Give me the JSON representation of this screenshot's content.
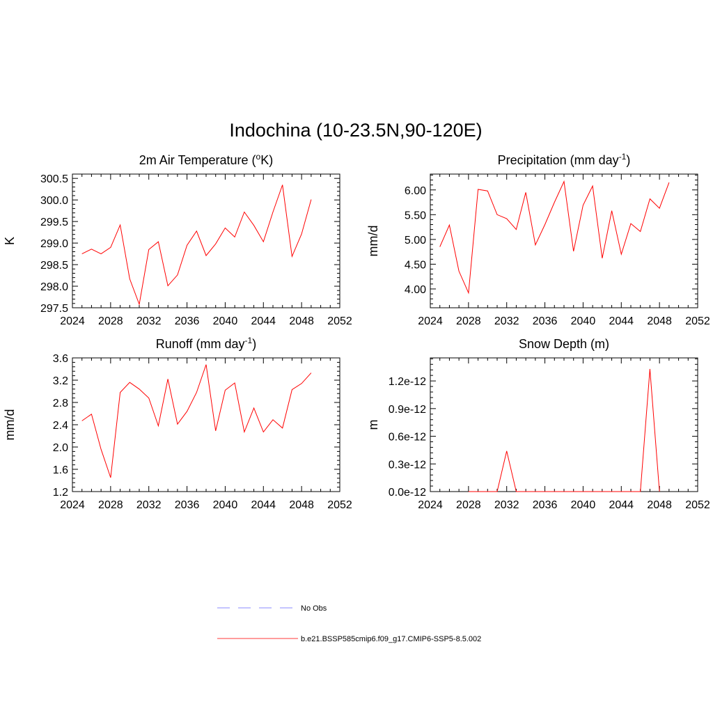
{
  "page_title": "Indochina (10-23.5N,90-120E)",
  "legend": [
    {
      "label": "No Obs",
      "color": "#a0a0ff",
      "style": "dashed"
    },
    {
      "label": "b.e21.BSSP585cmip6.f09_g17.CMIP6-SSP5-8.5.002",
      "color": "#ff6060",
      "style": "solid"
    }
  ],
  "chart_data": [
    {
      "type": "line",
      "title": "2m Air Temperature (",
      "title_sup": "o",
      "title_after": "K)",
      "ylabel": "K",
      "xlim": [
        2024,
        2052
      ],
      "xticks": [
        "2024",
        "2028",
        "2032",
        "2036",
        "2040",
        "2044",
        "2048",
        "2052"
      ],
      "ylim": [
        297.5,
        300.6
      ],
      "yticks": [
        "297.5",
        "298.0",
        "298.5",
        "299.0",
        "299.5",
        "300.0",
        "300.5"
      ],
      "ytick_values": [
        297.5,
        298.0,
        298.5,
        299.0,
        299.5,
        300.0,
        300.5
      ],
      "series_color": "#ff0000",
      "x": [
        2025,
        2026,
        2027,
        2028,
        2029,
        2030,
        2031,
        2032,
        2033,
        2034,
        2035,
        2036,
        2037,
        2038,
        2039,
        2040,
        2041,
        2042,
        2043,
        2044,
        2045,
        2046,
        2047,
        2048,
        2049
      ],
      "values": [
        298.75,
        298.86,
        298.75,
        298.9,
        299.42,
        298.17,
        297.58,
        298.85,
        299.03,
        298.01,
        298.26,
        298.95,
        299.28,
        298.71,
        298.98,
        299.35,
        299.14,
        299.72,
        299.41,
        299.03,
        299.72,
        300.35,
        298.69,
        299.21,
        300.01
      ]
    },
    {
      "type": "line",
      "title": "Precipitation (mm day",
      "title_sup": "-1",
      "title_after": ")",
      "ylabel": "mm/d",
      "xlim": [
        2024,
        2052
      ],
      "xticks": [
        "2024",
        "2028",
        "2032",
        "2036",
        "2040",
        "2044",
        "2048",
        "2052"
      ],
      "ylim": [
        3.62,
        6.32
      ],
      "yticks": [
        "4.00",
        "4.50",
        "5.00",
        "5.50",
        "6.00"
      ],
      "ytick_values": [
        4.0,
        4.5,
        5.0,
        5.5,
        6.0
      ],
      "series_color": "#ff0000",
      "x": [
        2025,
        2026,
        2027,
        2028,
        2029,
        2030,
        2031,
        2032,
        2033,
        2034,
        2035,
        2036,
        2037,
        2038,
        2039,
        2040,
        2041,
        2042,
        2043,
        2044,
        2045,
        2046,
        2047,
        2048,
        2049
      ],
      "values": [
        4.85,
        5.29,
        4.36,
        3.92,
        6.01,
        5.98,
        5.5,
        5.42,
        5.2,
        5.95,
        4.89,
        5.3,
        5.75,
        6.17,
        4.76,
        5.69,
        6.08,
        4.62,
        5.58,
        4.7,
        5.32,
        5.16,
        5.82,
        5.63,
        6.15
      ]
    },
    {
      "type": "line",
      "title": "Runoff (mm day",
      "title_sup": "-1",
      "title_after": ")",
      "ylabel": "mm/d",
      "xlim": [
        2024,
        2052
      ],
      "xticks": [
        "2024",
        "2028",
        "2032",
        "2036",
        "2040",
        "2044",
        "2048",
        "2052"
      ],
      "ylim": [
        1.2,
        3.6
      ],
      "yticks": [
        "1.2",
        "1.6",
        "2.0",
        "2.4",
        "2.8",
        "3.2",
        "3.6"
      ],
      "ytick_values": [
        1.2,
        1.6,
        2.0,
        2.4,
        2.8,
        3.2,
        3.6
      ],
      "series_color": "#ff0000",
      "x": [
        2025,
        2026,
        2027,
        2028,
        2029,
        2030,
        2031,
        2032,
        2033,
        2034,
        2035,
        2036,
        2037,
        2038,
        2039,
        2040,
        2041,
        2042,
        2043,
        2044,
        2045,
        2046,
        2047,
        2048,
        2049
      ],
      "values": [
        2.47,
        2.59,
        1.96,
        1.45,
        2.98,
        3.16,
        3.04,
        2.88,
        2.38,
        3.22,
        2.41,
        2.64,
        2.98,
        3.48,
        2.29,
        3.02,
        3.15,
        2.27,
        2.7,
        2.27,
        2.49,
        2.34,
        3.03,
        3.14,
        3.33
      ]
    },
    {
      "type": "line",
      "title": "Snow Depth (m)",
      "title_sup": "",
      "title_after": "",
      "ylabel": "m",
      "xlim": [
        2024,
        2052
      ],
      "xticks": [
        "2024",
        "2028",
        "2032",
        "2036",
        "2040",
        "2044",
        "2048",
        "2052"
      ],
      "ylim": [
        0.0,
        1.45
      ],
      "yticks": [
        "0.0e-12",
        "0.3e-12",
        "0.6e-12",
        "0.9e-12",
        "1.2e-12"
      ],
      "ytick_values": [
        0.0,
        0.3,
        0.6,
        0.9,
        1.2
      ],
      "value_unit_note": "values in units of 1e-12 m",
      "series_color": "#ff0000",
      "x": [
        2028,
        2029,
        2030,
        2031,
        2032,
        2033,
        2034,
        2035,
        2036,
        2037,
        2038,
        2039,
        2040,
        2041,
        2042,
        2043,
        2044,
        2045,
        2046,
        2047,
        2048
      ],
      "values": [
        0,
        0,
        0,
        0,
        0.44,
        0,
        0,
        0,
        0,
        0,
        0,
        0,
        0,
        0,
        0,
        0,
        0,
        0,
        0,
        1.33,
        0
      ]
    }
  ]
}
